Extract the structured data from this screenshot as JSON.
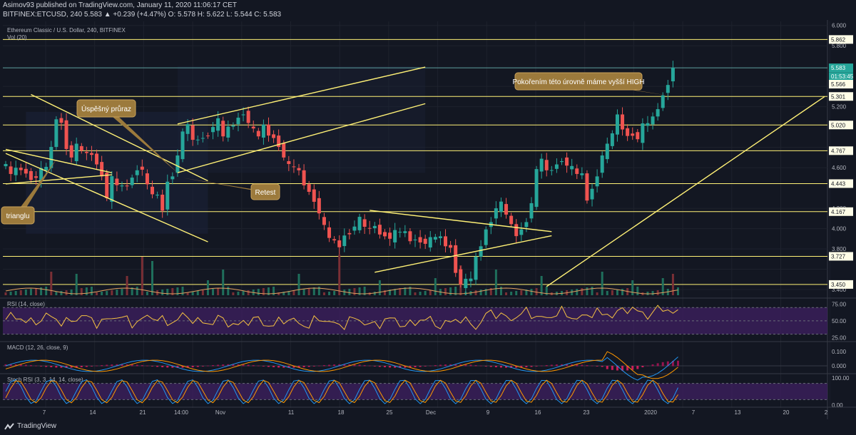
{
  "header": {
    "publisher_line": "Asimov93 published on TradingView.com, January 11, 2020 11:06:17 CET",
    "ticker_line": "BITFINEX:ETCUSD, 240 5.583 ▲ +0.239 (+4.47%) O: 5.578 H: 5.622 L: 5.544 C: 5.583",
    "chart_title": "Ethereum Classic / U.S. Dollar, 240, BITFINEX",
    "vol_label": "Vol (20)"
  },
  "footer": {
    "logo_text": "TradingView"
  },
  "chart_data": {
    "type": "candlestick",
    "title": "Ethereum Classic / U.S. Dollar, 240, BITFINEX",
    "price_axis": {
      "range": [
        3.33,
        6.04
      ],
      "ticks": [
        "6.000",
        "5.800",
        "5.200",
        "4.600",
        "4.200",
        "4.000",
        "3.800",
        "3.400"
      ],
      "labels": [
        {
          "value": 5.862,
          "text": "5.862",
          "style": "level"
        },
        {
          "value": 5.583,
          "text": "5.583",
          "style": "current"
        },
        {
          "value": 5.498,
          "text": "01:53:45",
          "style": "timer"
        },
        {
          "value": 5.422,
          "text": "5.566",
          "style": "level"
        },
        {
          "value": 5.301,
          "text": "5.301",
          "style": "level"
        },
        {
          "value": 5.02,
          "text": "5.020",
          "style": "level"
        },
        {
          "value": 4.767,
          "text": "4.767",
          "style": "level"
        },
        {
          "value": 4.443,
          "text": "4.443",
          "style": "level"
        },
        {
          "value": 4.167,
          "text": "4.167",
          "style": "level"
        },
        {
          "value": 3.727,
          "text": "3.727",
          "style": "level"
        },
        {
          "value": 3.45,
          "text": "3.450",
          "style": "level"
        }
      ],
      "horizontal_levels": [
        5.862,
        5.583,
        5.301,
        5.02,
        4.767,
        4.443,
        4.167,
        3.727,
        3.45
      ]
    },
    "time_axis": {
      "x_ticks": [
        "7",
        "14",
        "21",
        "14:00",
        "Nov",
        "11",
        "18",
        "25",
        "Dec",
        "9",
        "16",
        "23",
        "2020",
        "7",
        "13",
        "20",
        "2"
      ]
    },
    "price_series": [
      [
        0,
        4.65
      ],
      [
        2,
        4.55
      ],
      [
        4,
        4.6
      ],
      [
        5,
        4.53
      ],
      [
        7,
        4.5
      ],
      [
        9,
        4.62
      ],
      [
        10,
        4.78
      ],
      [
        11,
        5.1
      ],
      [
        12,
        5.03
      ],
      [
        13,
        4.82
      ],
      [
        14,
        4.7
      ],
      [
        15,
        4.8
      ],
      [
        16,
        4.78
      ],
      [
        17,
        4.72
      ],
      [
        18,
        4.75
      ],
      [
        19,
        4.62
      ],
      [
        20,
        4.55
      ],
      [
        21,
        4.3
      ],
      [
        22,
        4.48
      ],
      [
        23,
        4.44
      ],
      [
        24,
        4.4
      ],
      [
        25,
        4.44
      ],
      [
        26,
        4.49
      ],
      [
        27,
        4.61
      ],
      [
        28,
        4.58
      ],
      [
        29,
        4.4
      ],
      [
        30,
        4.35
      ],
      [
        31,
        4.31
      ],
      [
        32,
        4.2
      ],
      [
        33,
        4.45
      ],
      [
        34,
        4.55
      ],
      [
        35,
        4.72
      ],
      [
        36,
        4.92
      ],
      [
        37,
        5.04
      ],
      [
        38,
        4.85
      ],
      [
        39,
        4.9
      ],
      [
        40,
        4.88
      ],
      [
        41,
        4.95
      ],
      [
        42,
        5.0
      ],
      [
        43,
        5.05
      ],
      [
        44,
        4.92
      ],
      [
        45,
        4.98
      ],
      [
        46,
        5.04
      ],
      [
        47,
        5.08
      ],
      [
        48,
        5.16
      ],
      [
        49,
        5.04
      ],
      [
        50,
        4.95
      ],
      [
        51,
        4.92
      ],
      [
        52,
        5.0
      ],
      [
        53,
        4.94
      ],
      [
        54,
        4.88
      ],
      [
        55,
        4.84
      ],
      [
        56,
        4.7
      ],
      [
        57,
        4.6
      ],
      [
        58,
        4.62
      ],
      [
        59,
        4.55
      ],
      [
        60,
        4.45
      ],
      [
        61,
        4.35
      ],
      [
        62,
        4.3
      ],
      [
        63,
        4.15
      ],
      [
        64,
        4.0
      ],
      [
        65,
        3.92
      ],
      [
        66,
        3.86
      ],
      [
        67,
        3.84
      ],
      [
        68,
        3.92
      ],
      [
        69,
        3.98
      ],
      [
        70,
        4.02
      ],
      [
        71,
        4.08
      ],
      [
        72,
        4.03
      ],
      [
        73,
        3.98
      ],
      [
        74,
        4.05
      ],
      [
        75,
        3.93
      ],
      [
        76,
        3.96
      ],
      [
        77,
        3.9
      ],
      [
        78,
        3.95
      ],
      [
        79,
        3.98
      ],
      [
        80,
        3.95
      ],
      [
        81,
        3.9
      ],
      [
        82,
        3.88
      ],
      [
        83,
        3.9
      ],
      [
        84,
        3.85
      ],
      [
        85,
        3.88
      ],
      [
        86,
        3.93
      ],
      [
        87,
        3.9
      ],
      [
        88,
        3.85
      ],
      [
        89,
        3.8
      ],
      [
        90,
        3.6
      ],
      [
        91,
        3.45
      ],
      [
        92,
        3.47
      ],
      [
        93,
        3.52
      ],
      [
        94,
        3.7
      ],
      [
        95,
        3.85
      ],
      [
        96,
        3.98
      ],
      [
        97,
        4.1
      ],
      [
        98,
        4.2
      ],
      [
        99,
        4.23
      ],
      [
        100,
        4.15
      ],
      [
        101,
        4.02
      ],
      [
        102,
        3.95
      ],
      [
        103,
        3.98
      ],
      [
        104,
        4.1
      ],
      [
        105,
        4.25
      ],
      [
        106,
        4.55
      ],
      [
        107,
        4.7
      ],
      [
        108,
        4.55
      ],
      [
        109,
        4.6
      ],
      [
        110,
        4.62
      ],
      [
        111,
        4.7
      ],
      [
        112,
        4.62
      ],
      [
        113,
        4.58
      ],
      [
        114,
        4.55
      ],
      [
        115,
        4.52
      ],
      [
        116,
        4.3
      ],
      [
        117,
        4.38
      ],
      [
        118,
        4.55
      ],
      [
        119,
        4.72
      ],
      [
        120,
        4.8
      ],
      [
        121,
        4.95
      ],
      [
        122,
        5.1
      ],
      [
        123,
        5.0
      ],
      [
        124,
        4.9
      ],
      [
        125,
        4.95
      ],
      [
        126,
        4.88
      ],
      [
        127,
        5.0
      ],
      [
        128,
        5.05
      ],
      [
        129,
        5.08
      ],
      [
        130,
        5.2
      ],
      [
        131,
        5.3
      ],
      [
        132,
        5.45
      ],
      [
        133,
        5.583
      ]
    ],
    "volume_spikes": [
      [
        9,
        0.55
      ],
      [
        14,
        0.5
      ],
      [
        24,
        0.45
      ],
      [
        27,
        0.9
      ],
      [
        29,
        0.8
      ],
      [
        40,
        0.35
      ],
      [
        43,
        0.6
      ],
      [
        58,
        0.5
      ],
      [
        66,
        0.95
      ],
      [
        74,
        0.35
      ],
      [
        85,
        0.4
      ],
      [
        90,
        0.7
      ],
      [
        97,
        0.6
      ],
      [
        106,
        0.45
      ],
      [
        118,
        0.55
      ],
      [
        124,
        0.35
      ],
      [
        130,
        0.4
      ],
      [
        132,
        0.5
      ]
    ],
    "trendlines": [
      {
        "name": "channel-upper",
        "from": [
          34,
          5.03
        ],
        "to": [
          83,
          5.59
        ],
        "color": "#fff176"
      },
      {
        "name": "channel-lower",
        "from": [
          34,
          4.55
        ],
        "to": [
          83,
          5.23
        ],
        "color": "#fff176"
      },
      {
        "name": "triangle-top",
        "from": [
          5,
          5.32
        ],
        "to": [
          40,
          4.47
        ],
        "color": "#fff176"
      },
      {
        "name": "triangle-bottom",
        "from": [
          0,
          4.74
        ],
        "to": [
          40,
          3.87
        ],
        "color": "#fff176"
      },
      {
        "name": "upper-wedge",
        "from": [
          72,
          4.18
        ],
        "to": [
          108,
          3.97
        ],
        "color": "#fff176"
      },
      {
        "name": "lower-wedge",
        "from": [
          73,
          3.57
        ],
        "to": [
          108,
          3.93
        ],
        "color": "#fff176"
      },
      {
        "name": "ascending-support",
        "from": [
          107,
          3.43
        ],
        "to": [
          162,
          5.3
        ],
        "color": "#fff176"
      },
      {
        "name": "short-triangle-top",
        "from": [
          0,
          4.78
        ],
        "to": [
          21,
          4.55
        ],
        "color": "#fff176"
      },
      {
        "name": "short-triangle-bottom",
        "from": [
          0,
          4.44
        ],
        "to": [
          21,
          4.53
        ],
        "color": "#fff176"
      }
    ],
    "annotations": [
      {
        "name": "annotation-breakout",
        "text": "Úspěšný průraz",
        "pointer_to": [
          34,
          4.55
        ]
      },
      {
        "name": "annotation-retest",
        "text": "Retest",
        "pointer_to": [
          35,
          4.5
        ]
      },
      {
        "name": "annotation-triangle",
        "text": "trianglu",
        "pointer_to": [
          10,
          4.68
        ]
      },
      {
        "name": "annotation-high",
        "text": "Pokořením této úrovně máme vyšší HIGH",
        "pointer_to": [
          131,
          5.31
        ]
      }
    ],
    "indicators": [
      {
        "name": "RSI (14, close)",
        "levels": [
          "75.00",
          "50.00",
          "25.00"
        ]
      },
      {
        "name": "MACD (12, 26, close, 9)",
        "levels": [
          "0.100",
          "0.000"
        ]
      },
      {
        "name": "Stoch RSI (3, 3, 14, 14, close)",
        "levels": [
          "100.00",
          "0.00"
        ]
      }
    ],
    "colors": {
      "up": "#26a69a",
      "down": "#ef5350",
      "level": "#fff176",
      "panel": "#3c1f5e",
      "rsi": "#f5c242",
      "macd": "#2196f3",
      "signal": "#ff9800",
      "stoch_k": "#2196f3",
      "stoch_d": "#ff9800"
    }
  }
}
